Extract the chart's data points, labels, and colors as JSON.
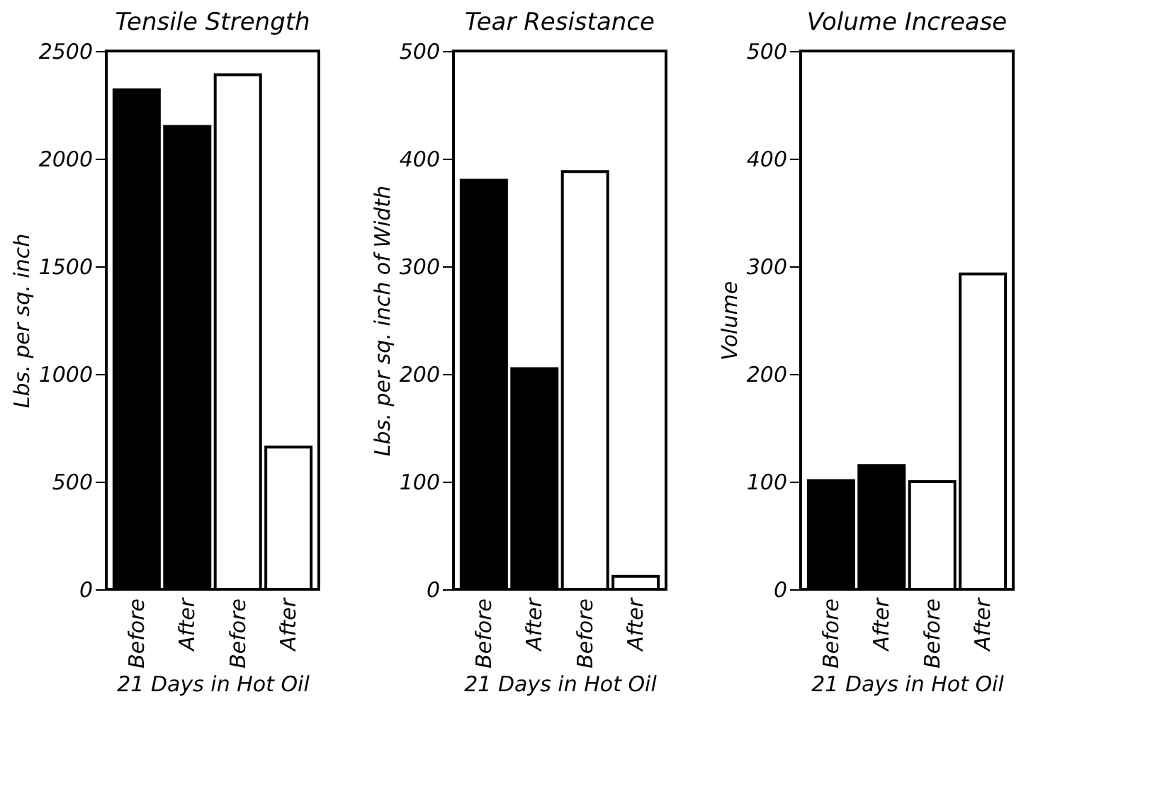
{
  "chart_data": [
    {
      "type": "bar",
      "title": "Tensile Strength",
      "ylabel": "Lbs. per sq. inch",
      "xlabel": "21 Days in Hot Oil",
      "categories": [
        "Before",
        "After",
        "Before",
        "After"
      ],
      "values": [
        2320,
        2150,
        2390,
        660
      ],
      "colors": [
        "#000000",
        "#000000",
        "#ffffff",
        "#ffffff"
      ],
      "ylim": [
        0,
        2500
      ],
      "yticks": [
        0,
        500,
        1000,
        1500,
        2000,
        2500
      ]
    },
    {
      "type": "bar",
      "title": "Tear Resistance",
      "ylabel": "Lbs. per sq. inch of Width",
      "xlabel": "21 Days in Hot Oil",
      "categories": [
        "Before",
        "After",
        "Before",
        "After"
      ],
      "values": [
        380,
        205,
        388,
        12
      ],
      "colors": [
        "#000000",
        "#000000",
        "#ffffff",
        "#ffffff"
      ],
      "ylim": [
        0,
        500
      ],
      "yticks": [
        0,
        100,
        200,
        300,
        400,
        500
      ]
    },
    {
      "type": "bar",
      "title": "Volume Increase",
      "ylabel": "Volume",
      "xlabel": "21 Days in Hot Oil",
      "categories": [
        "Before",
        "After",
        "Before",
        "After"
      ],
      "values": [
        101,
        115,
        100,
        293
      ],
      "colors": [
        "#000000",
        "#000000",
        "#ffffff",
        "#ffffff"
      ],
      "ylim": [
        0,
        500
      ],
      "yticks": [
        0,
        100,
        200,
        300,
        400,
        500
      ]
    }
  ]
}
